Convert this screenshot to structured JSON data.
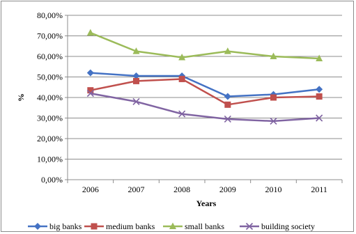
{
  "chart_data": {
    "type": "line",
    "title": "",
    "xlabel": "Years",
    "ylabel": "%",
    "categories": [
      "2006",
      "2007",
      "2008",
      "2009",
      "2010",
      "2011"
    ],
    "ylim": [
      0,
      80
    ],
    "y_ticks": [
      "0,00%",
      "10,00%",
      "20,00%",
      "30,00%",
      "40,00%",
      "50,00%",
      "60,00%",
      "70,00%",
      "80,00%"
    ],
    "grid": true,
    "legend_position": "bottom",
    "series": [
      {
        "name": "big banks",
        "color": "#4472c4",
        "marker": "diamond",
        "values": [
          52.0,
          50.5,
          50.5,
          40.5,
          41.5,
          44.0
        ]
      },
      {
        "name": "medium banks",
        "color": "#c0504d",
        "marker": "square",
        "values": [
          43.5,
          48.0,
          49.0,
          36.5,
          40.0,
          40.5
        ]
      },
      {
        "name": "small banks",
        "color": "#9bbb59",
        "marker": "triangle",
        "values": [
          71.5,
          62.5,
          59.5,
          62.5,
          60.0,
          59.0
        ]
      },
      {
        "name": "building society",
        "color": "#8064a2",
        "marker": "x",
        "values": [
          42.0,
          38.0,
          32.0,
          29.5,
          28.5,
          30.0
        ]
      }
    ]
  }
}
